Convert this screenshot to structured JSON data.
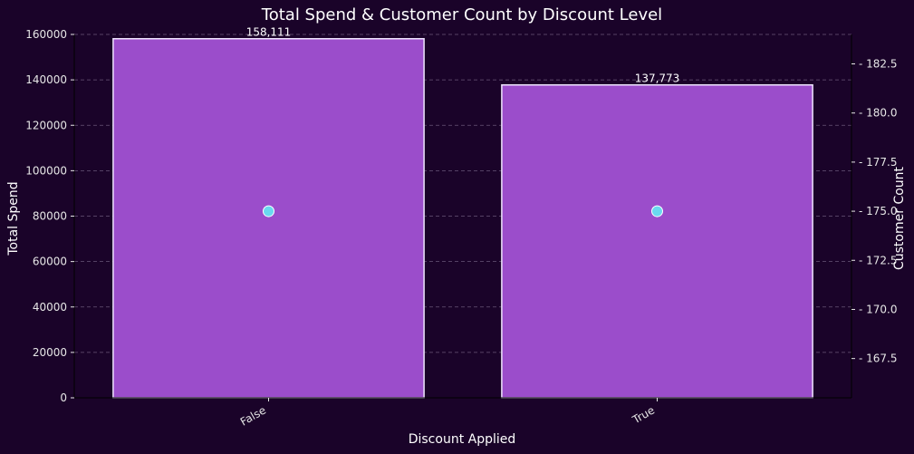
{
  "chart_data": {
    "type": "bar",
    "title": "Total Spend & Customer Count by Discount Level",
    "xlabel": "Discount Applied",
    "ylabel": "Total Spend",
    "y2label": "Customer Count",
    "categories": [
      "False",
      "True"
    ],
    "series": [
      {
        "axis": "left",
        "type": "bar",
        "values": [
          158111,
          137773
        ],
        "color": "#9b4dcb",
        "edge_color": "#f0e6ff"
      },
      {
        "axis": "right",
        "type": "scatter",
        "values": [
          175,
          175
        ],
        "color": "#6ad9f0"
      }
    ],
    "data_labels": [
      "158,111",
      "137,773"
    ],
    "ylim": [
      0,
      160000
    ],
    "y_ticks": [
      0,
      20000,
      40000,
      60000,
      80000,
      100000,
      120000,
      140000,
      160000
    ],
    "y_tick_labels": [
      "0",
      "20000",
      "40000",
      "60000",
      "80000",
      "100000",
      "120000",
      "140000",
      "160000"
    ],
    "y2lim": [
      165.5,
      184
    ],
    "y2_ticks": [
      167.5,
      170.0,
      172.5,
      175.0,
      177.5,
      180.0,
      182.5
    ],
    "y2_tick_labels": [
      "167.5",
      "170.0",
      "172.5",
      "175.0",
      "177.5",
      "180.0",
      "182.5"
    ],
    "grid": "horizontal dashed",
    "colors": {
      "background": "#1a0329",
      "text": "#ffffff",
      "grid": "#8a7a99"
    }
  }
}
